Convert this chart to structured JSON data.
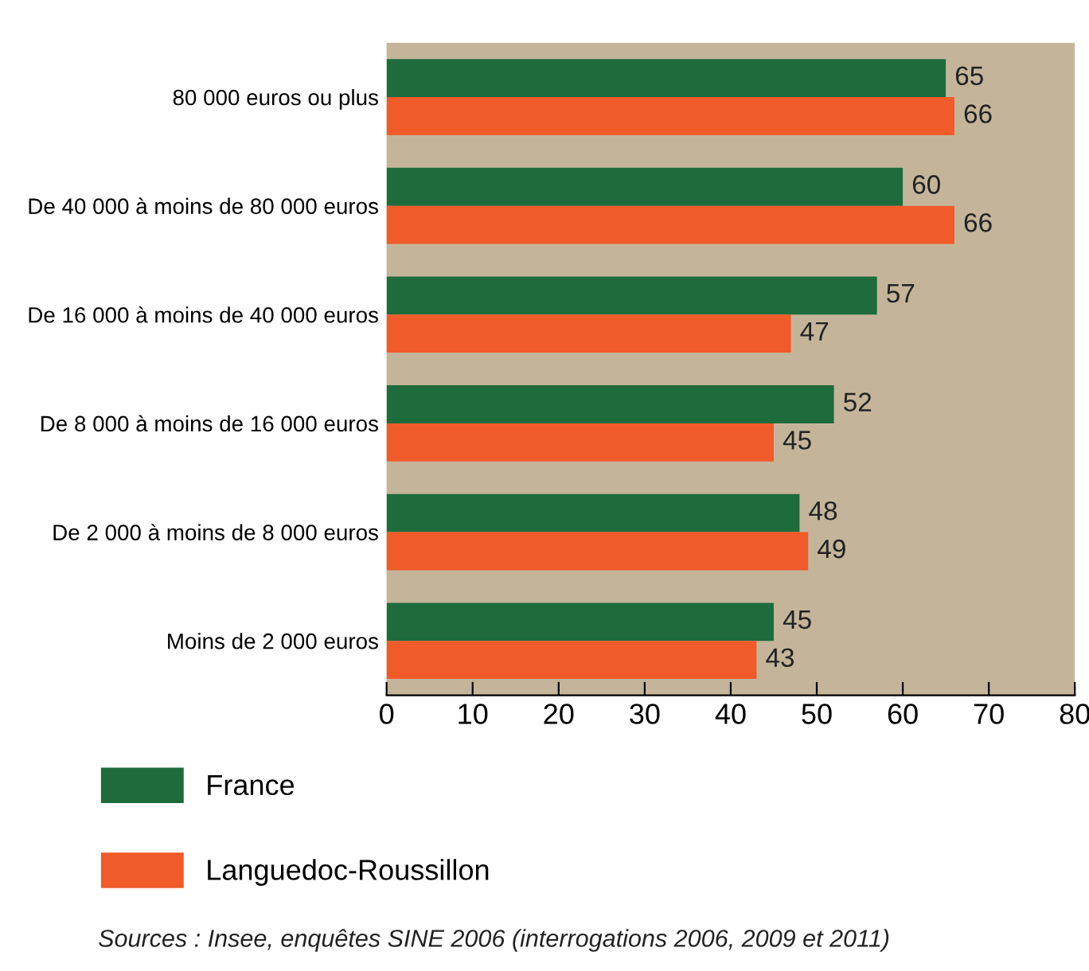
{
  "chart_data": {
    "type": "bar",
    "orientation": "horizontal",
    "categories": [
      "80 000 euros ou plus",
      "De 40 000 à moins de 80 000 euros",
      "De 16 000 à moins de 40 000 euros",
      "De 8 000 à moins de 16 000 euros",
      "De 2 000 à moins de 8 000 euros",
      "Moins de 2 000 euros"
    ],
    "series": [
      {
        "name": "France",
        "color": "#1e6b3c",
        "values": [
          65,
          60,
          57,
          52,
          48,
          45
        ]
      },
      {
        "name": "Languedoc-Roussillon",
        "color": "#f15a29",
        "values": [
          66,
          66,
          47,
          45,
          49,
          43
        ]
      }
    ],
    "xlim": [
      0,
      80
    ],
    "xticks": [
      0,
      10,
      20,
      30,
      40,
      50,
      60,
      70,
      80
    ],
    "data_labels": true,
    "grid": false,
    "legend": "bottom left",
    "annotations": [
      "Sources : Insee, enquêtes SINE 2006 (interrogations 2006, 2009 et 2011)"
    ]
  }
}
